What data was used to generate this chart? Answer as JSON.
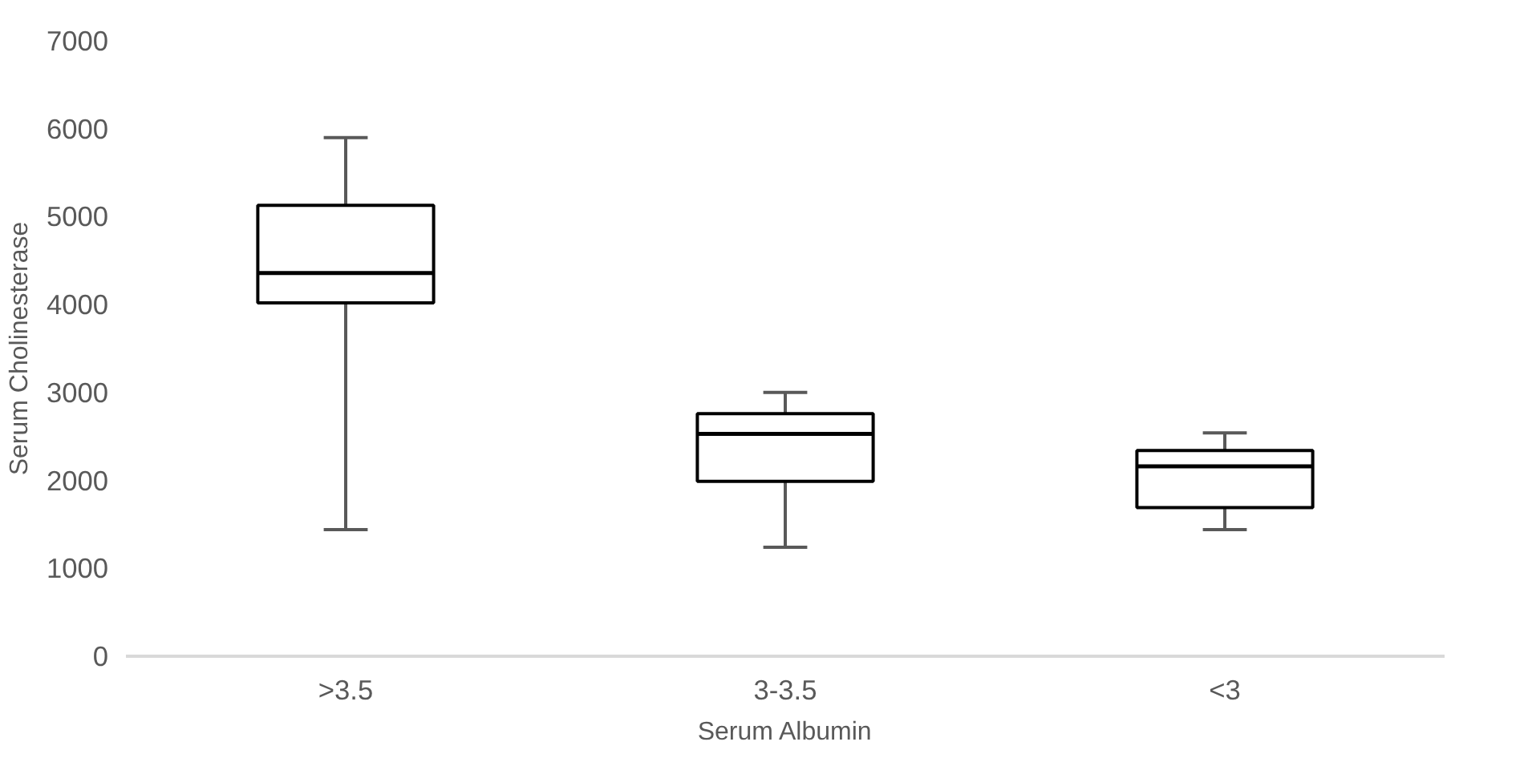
{
  "chart_data": {
    "type": "box",
    "categories": [
      ">3.5",
      "3-3.5",
      "<3"
    ],
    "xlabel": "Serum Albumin",
    "ylabel": "Serum Cholinesterase",
    "ylim": [
      0,
      7000
    ],
    "yticks": [
      0,
      1000,
      2000,
      3000,
      4000,
      5000,
      6000,
      7000
    ],
    "grid": false,
    "color": "#ffffff",
    "boxes": [
      {
        "low": 1440,
        "q1": 4020,
        "median": 4360,
        "q3": 5130,
        "high": 5900
      },
      {
        "low": 1240,
        "q1": 1990,
        "median": 2530,
        "q3": 2760,
        "high": 3000
      },
      {
        "low": 1440,
        "q1": 1690,
        "median": 2160,
        "q3": 2340,
        "high": 2540
      }
    ]
  }
}
